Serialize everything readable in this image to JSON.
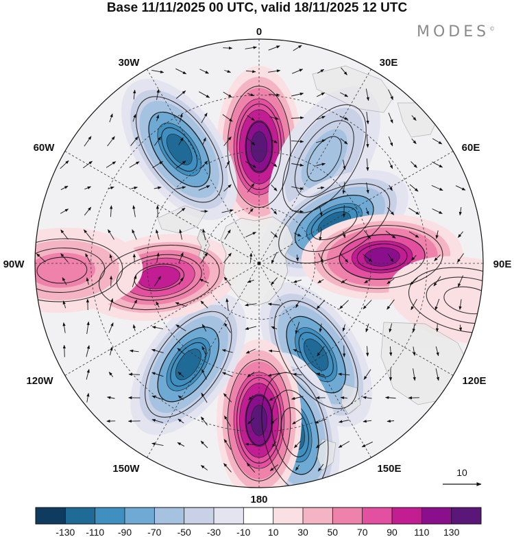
{
  "title": "Base 11/11/2025 00 UTC, valid 18/11/2025 12 UTC",
  "brand": "MODES",
  "brand_mark": "©",
  "meridian_labels": {
    "m0": "0",
    "m30e": "30E",
    "m60e": "60E",
    "m90e": "90E",
    "m120e": "120E",
    "m150e": "150E",
    "m180": "180",
    "m150w": "150W",
    "m120w": "120W",
    "m90w": "90W",
    "m60w": "60W",
    "m30w": "30W"
  },
  "reference_vector_label": "10",
  "colorbar": {
    "colors": [
      "#0f3b5f",
      "#1f6a96",
      "#3f8fc1",
      "#6eaad4",
      "#a5c3e0",
      "#c9d1e6",
      "#e4e4f0",
      "#ffffff",
      "#fbe0e3",
      "#f5b4c3",
      "#ee82aa",
      "#e2509f",
      "#c21d93",
      "#8b0f8c",
      "#5a1678"
    ],
    "ticks": [
      "-130",
      "-110",
      "-90",
      "-70",
      "-50",
      "-30",
      "-10",
      "10",
      "30",
      "50",
      "70",
      "90",
      "110",
      "130"
    ]
  },
  "anomaly_centers": [
    {
      "angle_deg": 0,
      "radius_frac": 0.52,
      "value": 135
    },
    {
      "angle_deg": 32,
      "radius_frac": 0.55,
      "value": -65
    },
    {
      "angle_deg": 62,
      "radius_frac": 0.38,
      "value": -110
    },
    {
      "angle_deg": 87,
      "radius_frac": 0.55,
      "value": 125
    },
    {
      "angle_deg": 148,
      "radius_frac": 0.48,
      "value": -125
    },
    {
      "angle_deg": 168,
      "radius_frac": 0.77,
      "value": -110
    },
    {
      "angle_deg": 180,
      "radius_frac": 0.7,
      "value": 130
    },
    {
      "angle_deg": 215,
      "radius_frac": 0.55,
      "value": -125
    },
    {
      "angle_deg": 262,
      "radius_frac": 0.45,
      "value": 90
    },
    {
      "angle_deg": 268,
      "radius_frac": 0.88,
      "value": 60
    },
    {
      "angle_deg": 325,
      "radius_frac": 0.62,
      "value": -125
    },
    {
      "angle_deg": 100,
      "radius_frac": 0.95,
      "value": 25
    }
  ]
}
